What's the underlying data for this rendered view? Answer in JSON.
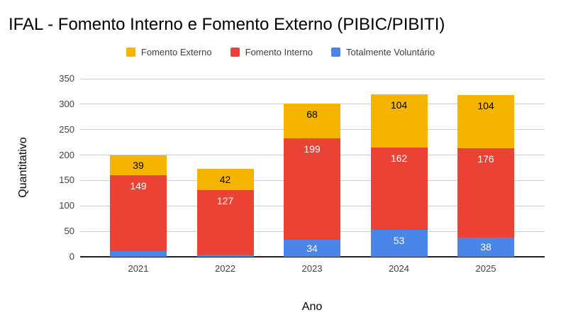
{
  "title": "IFAL - Fomento Interno e Fomento Externo (PIBIC/PIBITI)",
  "legend": {
    "items": [
      {
        "label": "Fomento Externo",
        "color": "#F5B400"
      },
      {
        "label": "Fomento Interno",
        "color": "#EA4335"
      },
      {
        "label": "Totalmente Voluntário",
        "color": "#4A86E8"
      }
    ]
  },
  "axes": {
    "x_title": "Ano",
    "y_title": "Quantitativo",
    "y_ticks": [
      0,
      50,
      100,
      150,
      200,
      250,
      300,
      350
    ],
    "x_ticks": [
      "2021",
      "2022",
      "2023",
      "2024",
      "2025"
    ]
  },
  "colors": {
    "fomento_externo": "#F5B400",
    "fomento_interno": "#EA4335",
    "totalmente_voluntario": "#4A86E8",
    "gridline": "#CCCCCC",
    "axis_line": "#212121"
  },
  "chart_data": {
    "type": "bar",
    "stacked": true,
    "title": "IFAL - Fomento Interno e Fomento Externo (PIBIC/PIBITI)",
    "xlabel": "Ano",
    "ylabel": "Quantitativo",
    "ylim": [
      0,
      350
    ],
    "ytick_step": 50,
    "grid": true,
    "legend_position": "top",
    "categories": [
      "2021",
      "2022",
      "2023",
      "2024",
      "2025"
    ],
    "series": [
      {
        "name": "Totalmente Voluntário",
        "color": "#4A86E8",
        "values": [
          11,
          4,
          34,
          53,
          38
        ]
      },
      {
        "name": "Fomento Interno",
        "color": "#EA4335",
        "values": [
          149,
          127,
          199,
          162,
          176
        ]
      },
      {
        "name": "Fomento Externo",
        "color": "#F5B400",
        "values": [
          39,
          42,
          68,
          104,
          104
        ]
      }
    ],
    "totals": [
      199,
      173,
      301,
      319,
      318
    ]
  }
}
